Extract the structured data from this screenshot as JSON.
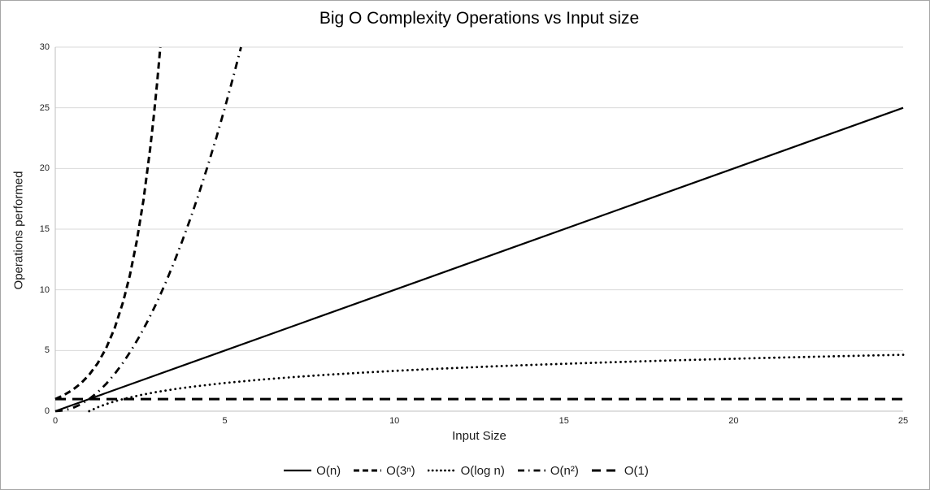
{
  "chart_data": {
    "type": "line",
    "title": "Big O Complexity Operations vs Input size",
    "xlabel": "Input Size",
    "ylabel": "Operations performed",
    "xlim": [
      0,
      25
    ],
    "ylim": [
      0,
      30
    ],
    "x_ticks": [
      0,
      5,
      10,
      15,
      20,
      25
    ],
    "y_ticks": [
      0,
      5,
      10,
      15,
      20,
      25,
      30
    ],
    "grid": true,
    "legend_position": "bottom",
    "colors": {
      "series": "#000000",
      "gridline": "#d9d9d9",
      "axis": "#bfbfbf",
      "tick_label": "#1f1f1f",
      "title": "#000000"
    },
    "series": [
      {
        "name": "O(n)",
        "style": "solid",
        "points": [
          [
            0,
            0
          ],
          [
            25,
            25
          ]
        ]
      },
      {
        "name": "O(3ⁿ)",
        "style": "dash",
        "points": [
          [
            0,
            1
          ],
          [
            0.25,
            1.316
          ],
          [
            0.5,
            1.732
          ],
          [
            0.75,
            2.28
          ],
          [
            1,
            3
          ],
          [
            1.25,
            3.948
          ],
          [
            1.5,
            5.196
          ],
          [
            1.75,
            6.838
          ],
          [
            2,
            9
          ],
          [
            2.2,
            11.212
          ],
          [
            2.4,
            13.967
          ],
          [
            2.6,
            17.399
          ],
          [
            2.8,
            21.674
          ],
          [
            2.9,
            24.191
          ],
          [
            3,
            27
          ],
          [
            3.096,
            30
          ]
        ]
      },
      {
        "name": "O(log n)",
        "style": "dot",
        "points": [
          [
            1,
            0
          ],
          [
            1.25,
            0.322
          ],
          [
            1.5,
            0.585
          ],
          [
            1.75,
            0.807
          ],
          [
            2,
            1
          ],
          [
            2.5,
            1.322
          ],
          [
            3,
            1.585
          ],
          [
            3.5,
            1.807
          ],
          [
            4,
            2
          ],
          [
            5,
            2.322
          ],
          [
            6,
            2.585
          ],
          [
            7,
            2.807
          ],
          [
            8,
            3
          ],
          [
            9,
            3.17
          ],
          [
            10,
            3.322
          ],
          [
            11,
            3.459
          ],
          [
            12,
            3.585
          ],
          [
            13,
            3.7
          ],
          [
            14,
            3.807
          ],
          [
            15,
            3.907
          ],
          [
            16,
            4
          ],
          [
            17,
            4.087
          ],
          [
            18,
            4.17
          ],
          [
            19,
            4.248
          ],
          [
            20,
            4.322
          ],
          [
            21,
            4.392
          ],
          [
            22,
            4.459
          ],
          [
            23,
            4.524
          ],
          [
            24,
            4.585
          ],
          [
            25,
            4.644
          ]
        ]
      },
      {
        "name": "O(n²)",
        "style": "dash-dot",
        "points": [
          [
            0,
            0
          ],
          [
            0.25,
            0.063
          ],
          [
            0.5,
            0.25
          ],
          [
            0.75,
            0.563
          ],
          [
            1,
            1
          ],
          [
            1.25,
            1.563
          ],
          [
            1.5,
            2.25
          ],
          [
            1.75,
            3.063
          ],
          [
            2,
            4
          ],
          [
            2.25,
            5.063
          ],
          [
            2.5,
            6.25
          ],
          [
            2.75,
            7.563
          ],
          [
            3,
            9
          ],
          [
            3.25,
            10.563
          ],
          [
            3.5,
            12.25
          ],
          [
            3.75,
            14.063
          ],
          [
            4,
            16
          ],
          [
            4.25,
            18.063
          ],
          [
            4.5,
            20.25
          ],
          [
            4.75,
            22.563
          ],
          [
            5,
            25
          ],
          [
            5.25,
            27.563
          ],
          [
            5.477,
            30
          ]
        ]
      },
      {
        "name": "O(1)",
        "style": "long-dash",
        "points": [
          [
            0,
            1
          ],
          [
            25,
            1
          ]
        ]
      }
    ]
  }
}
